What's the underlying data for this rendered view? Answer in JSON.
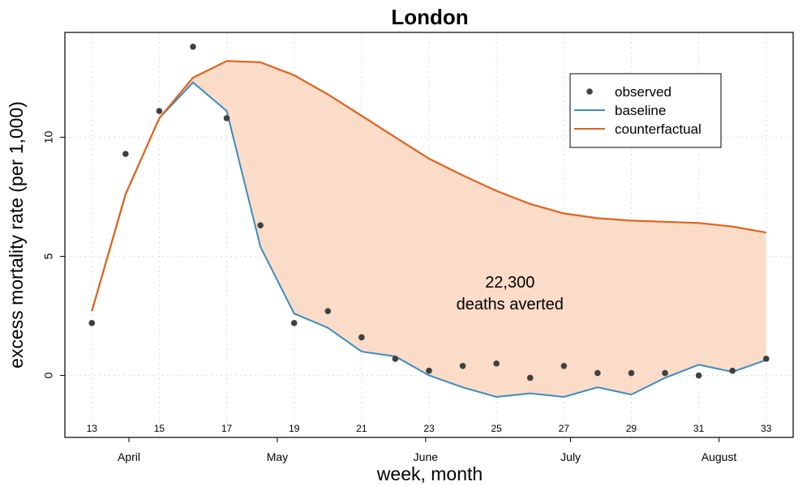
{
  "chart_data": {
    "type": "line",
    "title": "London",
    "xlabel": "week, month",
    "ylabel": "excess mortality rate (per 1,000)",
    "x": [
      13,
      14,
      15,
      16,
      17,
      18,
      19,
      20,
      21,
      22,
      23,
      24,
      25,
      26,
      27,
      28,
      29,
      30,
      31,
      32,
      33
    ],
    "xlim": [
      12.2,
      33.8
    ],
    "ylim": [
      -2.6,
      14.4
    ],
    "y_ticks": [
      0,
      5,
      10
    ],
    "week_ticks": [
      13,
      15,
      17,
      19,
      21,
      23,
      25,
      27,
      29,
      31,
      33
    ],
    "month_ticks": [
      {
        "x": 14.1,
        "label": "April"
      },
      {
        "x": 18.5,
        "label": "May"
      },
      {
        "x": 22.9,
        "label": "June"
      },
      {
        "x": 27.2,
        "label": "July"
      },
      {
        "x": 31.6,
        "label": "August"
      }
    ],
    "grid": true,
    "legend_position": "top-right",
    "series": [
      {
        "name": "observed",
        "type": "scatter",
        "color": "#404040",
        "values": [
          2.2,
          9.3,
          11.1,
          13.8,
          10.8,
          6.3,
          2.2,
          2.7,
          1.6,
          0.7,
          0.2,
          0.4,
          0.5,
          -0.1,
          0.4,
          0.1,
          0.1,
          0.1,
          0.0,
          0.2,
          0.7
        ]
      },
      {
        "name": "baseline",
        "type": "line",
        "color": "#3b8bc2",
        "values": [
          2.7,
          7.6,
          10.8,
          12.3,
          11.1,
          5.4,
          2.6,
          2.0,
          1.0,
          0.8,
          0.0,
          -0.5,
          -0.9,
          -0.75,
          -0.9,
          -0.5,
          -0.8,
          -0.1,
          0.45,
          0.15,
          0.65
        ]
      },
      {
        "name": "counterfactual",
        "type": "line",
        "color": "#e2621b",
        "values": [
          2.7,
          7.6,
          10.8,
          12.5,
          13.2,
          13.15,
          12.6,
          11.8,
          10.9,
          10.0,
          9.1,
          8.4,
          7.75,
          7.2,
          6.8,
          6.6,
          6.5,
          6.45,
          6.4,
          6.25,
          6.0
        ]
      }
    ],
    "fill_between": {
      "lower": "baseline",
      "upper": "counterfactual",
      "color": "#fbdcc8"
    },
    "annotation": {
      "x": 25.4,
      "lines": [
        "22,300",
        "deaths averted"
      ]
    }
  }
}
